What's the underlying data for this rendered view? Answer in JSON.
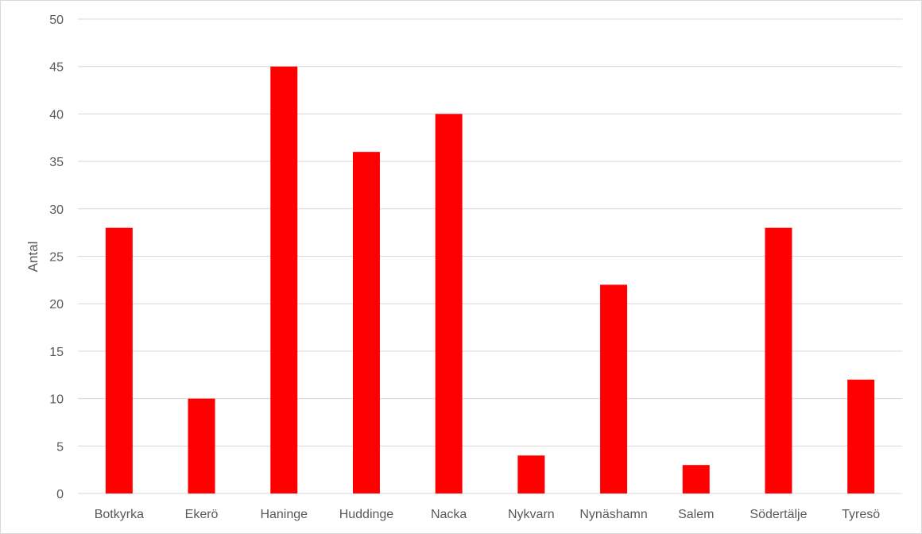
{
  "chart_data": {
    "type": "bar",
    "title": "",
    "xlabel": "",
    "ylabel": "Antal",
    "ylim": [
      0,
      50
    ],
    "yticks": [
      0,
      5,
      10,
      15,
      20,
      25,
      30,
      35,
      40,
      45,
      50
    ],
    "grid": true,
    "legend": "none",
    "bar_color": "#ff0000",
    "categories": [
      "Botkyrka",
      "Ekerö",
      "Haninge",
      "Huddinge",
      "Nacka",
      "Nykvarn",
      "Nynäshamn",
      "Salem",
      "Södertälje",
      "Tyresö"
    ],
    "values": [
      28,
      10,
      45,
      36,
      40,
      4,
      22,
      3,
      28,
      12
    ]
  }
}
